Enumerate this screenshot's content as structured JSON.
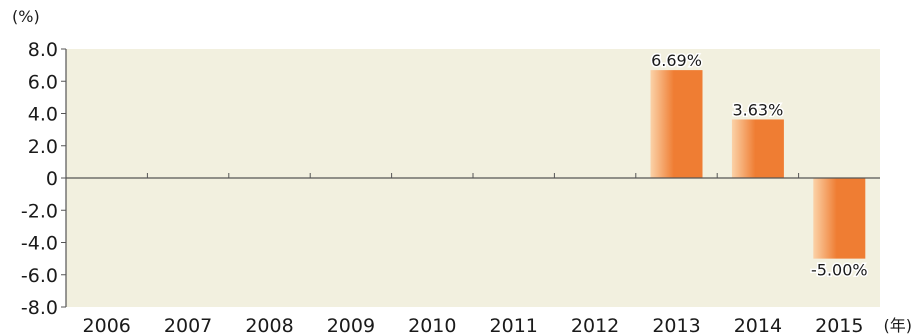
{
  "chart_data": {
    "type": "bar",
    "categories": [
      "2006",
      "2007",
      "2008",
      "2009",
      "2010",
      "2011",
      "2012",
      "2013",
      "2014",
      "2015"
    ],
    "values": [
      null,
      null,
      null,
      null,
      null,
      null,
      null,
      6.69,
      3.63,
      -5.0
    ],
    "data_labels": [
      "",
      "",
      "",
      "",
      "",
      "",
      "",
      "6.69%",
      "3.63%",
      "-5.00%"
    ],
    "y_unit_label": "(%)",
    "x_unit_label": "(年)",
    "ylim": [
      -8.0,
      8.0
    ],
    "yticks": [
      "8.0",
      "6.0",
      "4.0",
      "2.0",
      "0",
      "-2.0",
      "-4.0",
      "-6.0",
      "-8.0"
    ],
    "grid": false,
    "colors": {
      "plot_background": "#f2f0df",
      "bar_light": "#fbd2a8",
      "bar_dark": "#ef7d33",
      "axis": "#555555"
    }
  }
}
